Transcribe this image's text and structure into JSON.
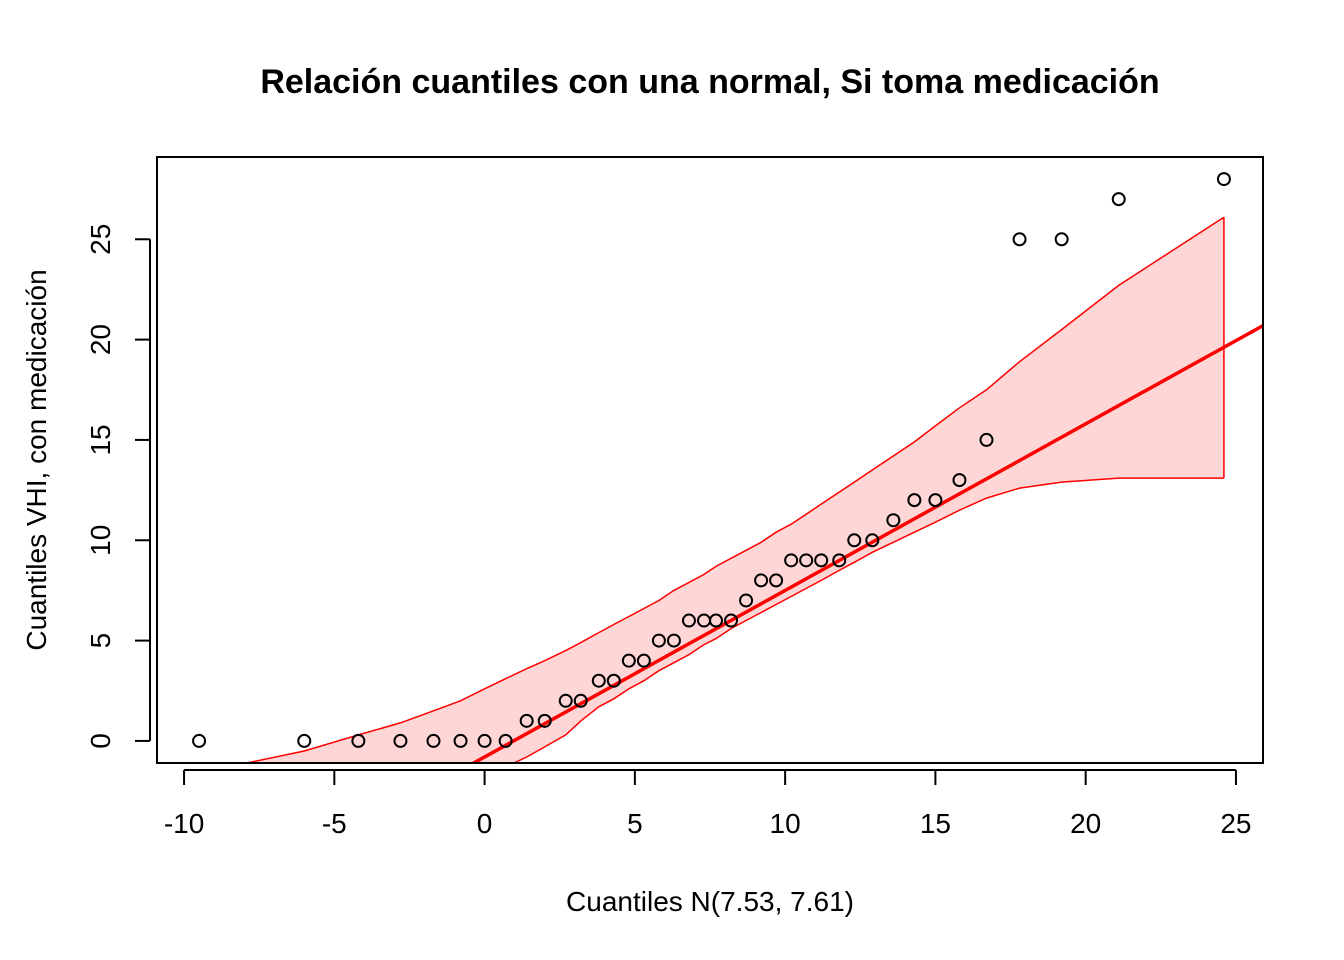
{
  "chart_data": {
    "type": "scatter",
    "title": "Relación cuantiles con una normal, Si toma medicación",
    "xlabel": "Cuantiles N(7.53, 7.61)",
    "ylabel": "Cuantiles VHI, con medicación",
    "xlim": [
      -10.9,
      25.9
    ],
    "ylim": [
      -1.1,
      29.1
    ],
    "x_ticks": [
      -10,
      -5,
      0,
      5,
      10,
      15,
      20,
      25
    ],
    "y_ticks": [
      0,
      5,
      10,
      15,
      20,
      25
    ],
    "x_tick_labels": [
      "-10",
      "-5",
      "0",
      "5",
      "10",
      "15",
      "20",
      "25"
    ],
    "y_tick_labels": [
      "0",
      "5",
      "10",
      "15",
      "20",
      "25"
    ],
    "grid": false,
    "colors": {
      "points": "#000000",
      "line": "#ff0000",
      "band_fill": "#ffd6d6",
      "band_edge": "#ff0000"
    },
    "points": {
      "x": [
        -9.5,
        -6.0,
        -4.2,
        -2.8,
        -1.7,
        -0.8,
        0.0,
        0.7,
        1.4,
        2.0,
        2.7,
        3.2,
        3.8,
        4.3,
        4.8,
        5.3,
        5.8,
        6.3,
        6.8,
        7.3,
        7.7,
        8.2,
        8.7,
        9.2,
        9.7,
        10.2,
        10.7,
        11.2,
        11.8,
        12.3,
        12.9,
        13.6,
        14.3,
        15.0,
        15.8,
        16.7,
        17.8,
        19.2,
        21.1,
        24.6
      ],
      "y": [
        0,
        0,
        0,
        0,
        0,
        0,
        0,
        0,
        1,
        1,
        2,
        2,
        3,
        3,
        4,
        4,
        5,
        5,
        6,
        6,
        6,
        6,
        7,
        8,
        8,
        9,
        9,
        9,
        9,
        10,
        10,
        11,
        12,
        12,
        13,
        15,
        25,
        25,
        27,
        28
      ]
    },
    "reference_line": {
      "intercept": -0.8,
      "slope": 0.83
    },
    "confidence_band": {
      "x": [
        -9.5,
        -6.0,
        -4.2,
        -2.8,
        -1.7,
        -0.8,
        0.0,
        0.7,
        1.4,
        2.0,
        2.7,
        3.2,
        3.8,
        4.3,
        4.8,
        5.3,
        5.8,
        6.3,
        6.8,
        7.3,
        7.7,
        8.2,
        8.7,
        9.2,
        9.7,
        10.2,
        10.7,
        11.2,
        11.8,
        12.3,
        12.9,
        13.6,
        14.3,
        15.0,
        15.8,
        16.7,
        17.8,
        19.2,
        21.1,
        24.6
      ],
      "upper": [
        -1.6,
        -0.5,
        0.3,
        0.9,
        1.5,
        2.0,
        2.6,
        3.1,
        3.6,
        4.0,
        4.5,
        4.9,
        5.4,
        5.8,
        6.2,
        6.6,
        7.0,
        7.5,
        7.9,
        8.3,
        8.7,
        9.1,
        9.5,
        9.9,
        10.4,
        10.8,
        11.3,
        11.8,
        12.4,
        12.9,
        13.5,
        14.2,
        14.9,
        15.7,
        16.6,
        17.5,
        18.9,
        20.5,
        22.7,
        26.1
      ],
      "lower": [
        -6.6,
        -4.9,
        -4.0,
        -3.4,
        -2.8,
        -2.3,
        -1.8,
        -1.3,
        -0.8,
        -0.3,
        0.3,
        1.0,
        1.7,
        2.1,
        2.6,
        3.0,
        3.5,
        3.9,
        4.3,
        4.8,
        5.1,
        5.6,
        6.0,
        6.4,
        6.8,
        7.2,
        7.6,
        8.0,
        8.5,
        8.9,
        9.4,
        9.9,
        10.4,
        10.9,
        11.5,
        12.1,
        12.6,
        12.9,
        13.1,
        13.1
      ]
    }
  }
}
